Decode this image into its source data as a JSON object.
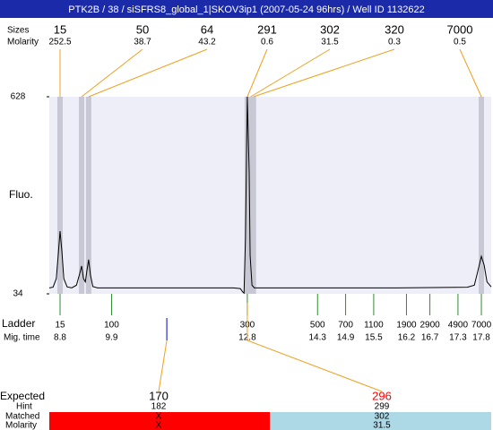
{
  "title": "PTK2B / 38 / siSFRS8_global_1|SKOV3ip1 (2007-05-24 96hrs) / Well ID 1132622",
  "peaks": {
    "label": "Sizes",
    "molarity_label": "Molarity",
    "sizes": [
      15,
      50,
      64,
      291,
      302,
      320,
      7000
    ],
    "molarity": [
      252.5,
      38.7,
      43.2,
      0.6,
      31.5,
      0.3,
      0.5
    ],
    "times": [
      8.8,
      9.26,
      9.41,
      12.8,
      12.87,
      12.93,
      17.8
    ]
  },
  "chart_data": {
    "type": "line",
    "ylabel": "Fluo.",
    "ylim": [
      34,
      628
    ],
    "yticks": [
      34,
      628
    ],
    "xlim": [
      8.57,
      18.01
    ],
    "color": "#000000",
    "background": "#eeeef8",
    "band_color": "#c8c8d4",
    "x": [
      8.57,
      8.65,
      8.72,
      8.76,
      8.8,
      8.84,
      8.88,
      8.95,
      9.05,
      9.15,
      9.22,
      9.26,
      9.3,
      9.34,
      9.38,
      9.41,
      9.45,
      9.5,
      9.6,
      10.5,
      11.5,
      12.5,
      12.65,
      12.7,
      12.73,
      12.76,
      12.8,
      12.84,
      12.86,
      12.9,
      12.95,
      14,
      16,
      17.5,
      17.65,
      17.72,
      17.8,
      17.86,
      17.92,
      18.01
    ],
    "values": [
      52,
      54,
      80,
      150,
      223,
      160,
      80,
      55,
      52,
      60,
      95,
      118,
      80,
      70,
      110,
      137,
      90,
      56,
      52,
      52,
      52,
      52,
      50,
      40,
      36,
      200,
      628,
      400,
      150,
      60,
      52,
      52,
      52,
      54,
      60,
      100,
      147,
      120,
      70,
      55
    ]
  },
  "ladder": {
    "label": "Ladder",
    "time_label": "Mig. time",
    "color": "#2e8b2e",
    "sizes": [
      15,
      100,
      300,
      500,
      700,
      1100,
      1900,
      2900,
      4900,
      7000
    ],
    "times": [
      8.8,
      9.9,
      12.8,
      14.3,
      14.9,
      15.5,
      16.2,
      16.7,
      17.3,
      17.8
    ]
  },
  "expected": {
    "label": "Expected",
    "hint_label": "Hint",
    "matched_label": "Matched",
    "molarity_label": "Molarity",
    "sizes": [
      170,
      296
    ],
    "times": [
      11.08,
      12.8
    ],
    "hint": [
      182,
      299
    ],
    "matched": [
      "X",
      302
    ],
    "molarity": [
      "X",
      31.5
    ],
    "colors": [
      "#ff0000",
      "#add8e6"
    ],
    "text_colors": [
      "#000000",
      "#ff0000"
    ]
  }
}
